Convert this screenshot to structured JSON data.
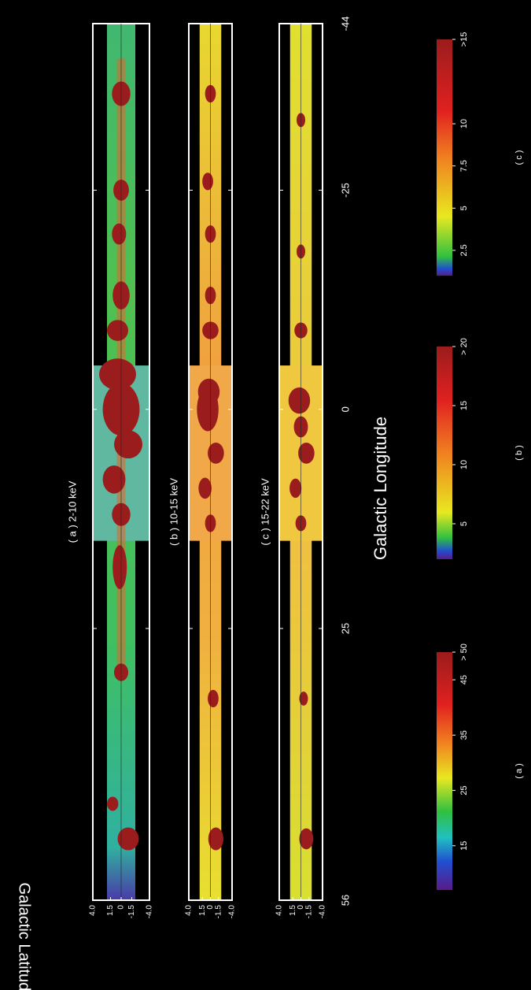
{
  "chart_data": {
    "type": "heatmap",
    "xlabel": "Galactic Longitude",
    "ylabel": "Galactic Latitude",
    "xlim": [
      56,
      -44
    ],
    "xticks": [
      56,
      25,
      0,
      -25,
      -44
    ],
    "ylim": [
      -4,
      4
    ],
    "yticks": [
      {
        "value": 4,
        "label": "4.0"
      },
      1.5,
      0,
      -1.5,
      {
        "value": -4,
        "label": "-4.0"
      }
    ],
    "panels": [
      {
        "title": "( a )  2-10 keV"
      },
      {
        "title": "( b )  10-15 keV"
      },
      {
        "title": "( c )  15-22 keV"
      }
    ],
    "colorbars": [
      {
        "label": "( a )",
        "clim": [
          7,
          50
        ],
        "ticks": [
          15,
          25,
          35,
          45,
          {
            "value": 50,
            "label": "> 50"
          }
        ]
      },
      {
        "label": "( b )",
        "clim": [
          2,
          20
        ],
        "ticks": [
          5,
          10,
          15,
          {
            "value": 20,
            "label": "> 20"
          }
        ]
      },
      {
        "label": "( c )",
        "clim": [
          1,
          15
        ],
        "ticks": [
          2.5,
          5,
          7.5,
          10,
          {
            "value": 15,
            "label": ">15"
          }
        ]
      }
    ]
  }
}
